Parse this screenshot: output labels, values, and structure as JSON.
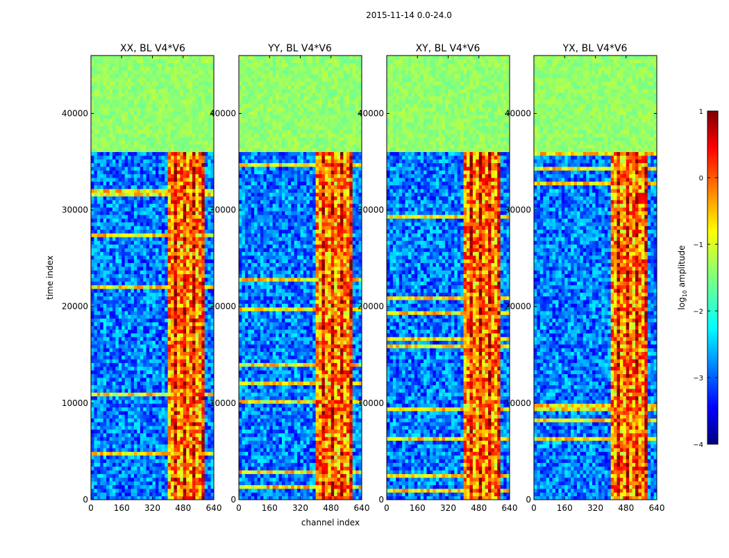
{
  "chart_data": {
    "type": "heatmap",
    "suptitle": "2015-11-14 0.0-24.0",
    "panels": [
      {
        "title": "XX, BL V4*V6"
      },
      {
        "title": "YY, BL V4*V6"
      },
      {
        "title": "XY, BL V4*V6"
      },
      {
        "title": "YX, BL V4*V6"
      }
    ],
    "xlabel": "channel index",
    "ylabel": "time index",
    "xlim": [
      0,
      640
    ],
    "ylim": [
      0,
      46000
    ],
    "xticks": [
      0,
      160,
      320,
      480,
      640
    ],
    "yticks": [
      0,
      10000,
      20000,
      30000,
      40000
    ],
    "xtick_labels": [
      "0",
      "160",
      "320",
      "480",
      "640"
    ],
    "ytick_labels": [
      "0",
      "10000",
      "20000",
      "30000",
      "40000"
    ],
    "colorbar": {
      "label_main": "log",
      "label_sub": "10",
      "label_rest": " amplitude",
      "range": [
        -4,
        1
      ],
      "ticks": [
        1,
        0,
        -1,
        -2,
        -3,
        -4
      ],
      "tick_labels": [
        "1",
        "0",
        "−1",
        "−2",
        "−3",
        "−4"
      ],
      "colormap": "jet"
    },
    "regions": {
      "flagged_time_rows": [
        36000,
        46000
      ],
      "rfi_channel_band": [
        400,
        590
      ]
    }
  }
}
